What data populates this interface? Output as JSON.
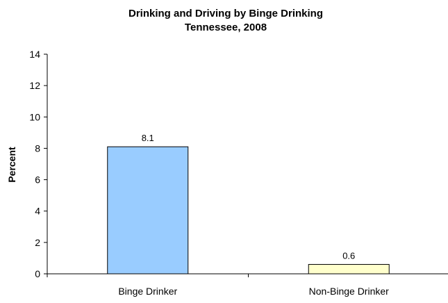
{
  "chart_data": {
    "type": "bar",
    "title": "Drinking and Driving by Binge Drinking",
    "subtitle": "Tennessee, 2008",
    "xlabel": "",
    "ylabel": "Percent",
    "ylim": [
      0,
      14
    ],
    "yticks": [
      0,
      2,
      4,
      6,
      8,
      10,
      12,
      14
    ],
    "categories": [
      "Binge Drinker",
      "Non-Binge Drinker"
    ],
    "values": [
      8.1,
      0.6
    ],
    "data_labels": [
      "8.1",
      "0.6"
    ],
    "bar_colors": [
      "#99ccff",
      "#ffffcc"
    ],
    "grid": false,
    "legend": "none"
  }
}
